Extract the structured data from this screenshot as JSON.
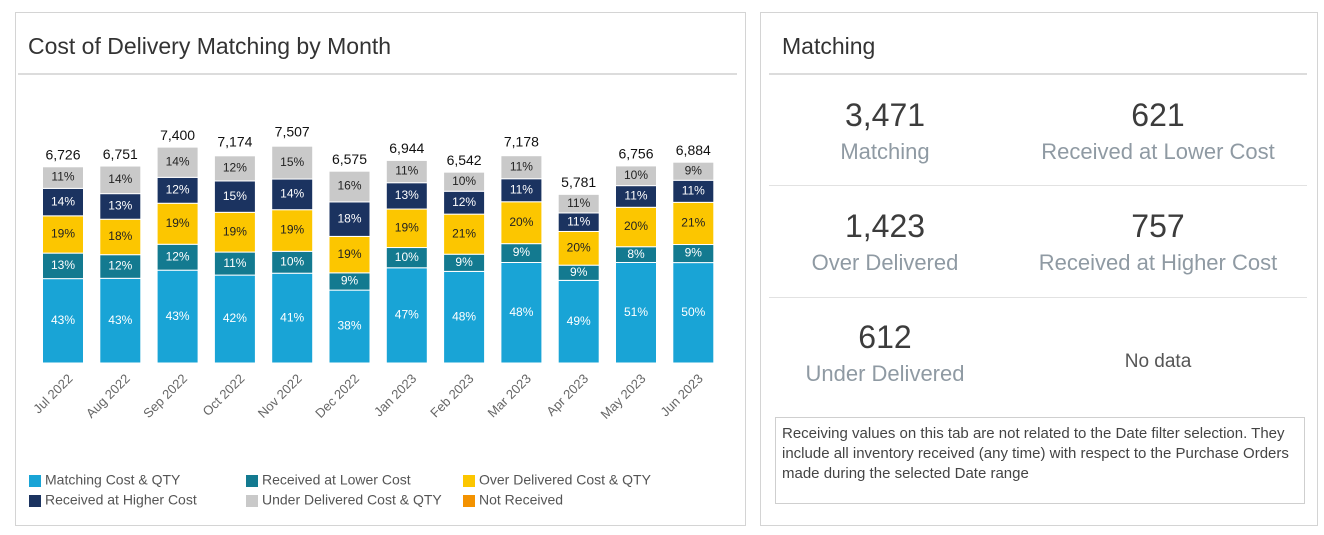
{
  "chart_data": {
    "type": "stacked_bar",
    "title": "Cost of Delivery Matching by Month",
    "categories": [
      "Jul 2022",
      "Aug 2022",
      "Sep 2022",
      "Oct 2022",
      "Nov 2022",
      "Dec 2022",
      "Jan 2023",
      "Feb 2023",
      "Mar 2023",
      "Apr 2023",
      "May 2023",
      "Jun 2023"
    ],
    "totals": [
      6726,
      6751,
      7400,
      7174,
      7507,
      6575,
      6944,
      6542,
      7178,
      5781,
      6756,
      6884
    ],
    "total_labels": [
      "6,726",
      "6,751",
      "7,400",
      "7,174",
      "7,507",
      "6,575",
      "6,944",
      "6,542",
      "7,178",
      "5,781",
      "6,756",
      "6,884"
    ],
    "series": [
      {
        "name": "Matching Cost & QTY",
        "color": "#19a4d6",
        "label_color": "#ffffff",
        "values": [
          43,
          43,
          43,
          42,
          41,
          38,
          47,
          48,
          48,
          49,
          51,
          50
        ],
        "value_labels": [
          "43%",
          "43%",
          "43%",
          "42%",
          "41%",
          "38%",
          "47%",
          "48%",
          "48%",
          "49%",
          "51%",
          "50%"
        ]
      },
      {
        "name": "Received at Lower Cost",
        "color": "#137a90",
        "label_color": "#ffffff",
        "values": [
          13,
          12,
          12,
          11,
          10,
          9,
          10,
          9,
          9,
          9,
          8,
          9
        ],
        "value_labels": [
          "13%",
          "12%",
          "12%",
          "11%",
          "10%",
          "9%",
          "10%",
          "9%",
          "9%",
          "9%",
          "8%",
          "9%"
        ]
      },
      {
        "name": "Over Delivered Cost & QTY",
        "color": "#fcc600",
        "label_color": "#222222",
        "values": [
          19,
          18,
          19,
          19,
          19,
          19,
          19,
          21,
          20,
          20,
          20,
          21
        ],
        "value_labels": [
          "19%",
          "18%",
          "19%",
          "19%",
          "19%",
          "19%",
          "19%",
          "21%",
          "20%",
          "20%",
          "20%",
          "21%"
        ]
      },
      {
        "name": "Received at Higher Cost",
        "color": "#1b3360",
        "label_color": "#ffffff",
        "values": [
          14,
          13,
          12,
          15,
          14,
          18,
          13,
          12,
          11,
          11,
          11,
          11
        ],
        "value_labels": [
          "14%",
          "13%",
          "12%",
          "15%",
          "14%",
          "18%",
          "13%",
          "12%",
          "11%",
          "11%",
          "11%",
          "11%"
        ]
      },
      {
        "name": "Under Delivered Cost & QTY",
        "color": "#c9c9c9",
        "label_color": "#222222",
        "values": [
          11,
          14,
          14,
          12,
          15,
          16,
          11,
          10,
          11,
          11,
          10,
          9
        ],
        "value_labels": [
          "11%",
          "14%",
          "14%",
          "12%",
          "15%",
          "16%",
          "11%",
          "10%",
          "11%",
          "11%",
          "10%",
          "9%"
        ]
      },
      {
        "name": "Not Received",
        "color": "#f39200",
        "label_color": "#222222",
        "values": [
          null,
          null,
          null,
          null,
          null,
          null,
          null,
          null,
          null,
          null,
          null,
          null
        ]
      }
    ]
  },
  "matching": {
    "title": "Matching",
    "kpis": [
      {
        "value": "3,471",
        "label": "Matching"
      },
      {
        "value": "621",
        "label": "Received at Lower Cost"
      },
      {
        "value": "1,423",
        "label": "Over Delivered"
      },
      {
        "value": "757",
        "label": "Received at Higher Cost"
      },
      {
        "value": "612",
        "label": "Under Delivered"
      },
      {
        "value": null,
        "label": "No data"
      }
    ],
    "note": "Receiving values on this tab are not related to the Date filter selection.  They include all inventory received (any time) with respect to the Purchase Orders made during the selected Date range"
  }
}
